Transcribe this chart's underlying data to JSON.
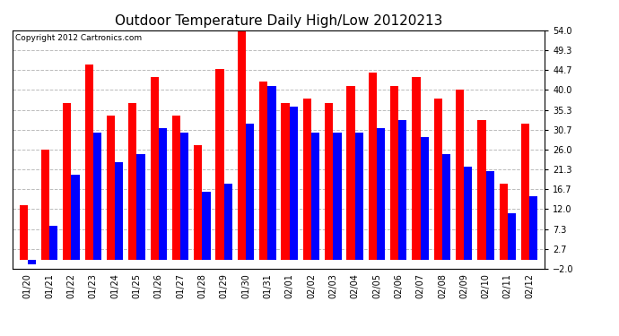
{
  "title": "Outdoor Temperature Daily High/Low 20120213",
  "copyright": "Copyright 2012 Cartronics.com",
  "categories": [
    "01/20",
    "01/21",
    "01/22",
    "01/23",
    "01/24",
    "01/25",
    "01/26",
    "01/27",
    "01/28",
    "01/29",
    "01/30",
    "01/31",
    "02/01",
    "02/02",
    "02/03",
    "02/04",
    "02/05",
    "02/06",
    "02/07",
    "02/08",
    "02/09",
    "02/10",
    "02/11",
    "02/12"
  ],
  "highs": [
    13.0,
    26.0,
    37.0,
    46.0,
    34.0,
    37.0,
    43.0,
    34.0,
    27.0,
    45.0,
    54.0,
    42.0,
    37.0,
    38.0,
    37.0,
    41.0,
    44.0,
    41.0,
    43.0,
    38.0,
    40.0,
    33.0,
    18.0,
    32.0
  ],
  "lows": [
    -1.0,
    8.0,
    20.0,
    30.0,
    23.0,
    25.0,
    31.0,
    30.0,
    16.0,
    18.0,
    32.0,
    41.0,
    36.0,
    30.0,
    30.0,
    30.0,
    31.0,
    33.0,
    29.0,
    25.0,
    22.0,
    21.0,
    11.0,
    15.0
  ],
  "high_color": "#ff0000",
  "low_color": "#0000ff",
  "bg_color": "#ffffff",
  "plot_bg_color": "#ffffff",
  "grid_color": "#bbbbbb",
  "yticks": [
    -2.0,
    2.7,
    7.3,
    12.0,
    16.7,
    21.3,
    26.0,
    30.7,
    35.3,
    40.0,
    44.7,
    49.3,
    54.0
  ],
  "ylim": [
    -2.0,
    54.0
  ],
  "bar_width": 0.38,
  "title_fontsize": 11,
  "tick_fontsize": 7,
  "copyright_fontsize": 6.5
}
